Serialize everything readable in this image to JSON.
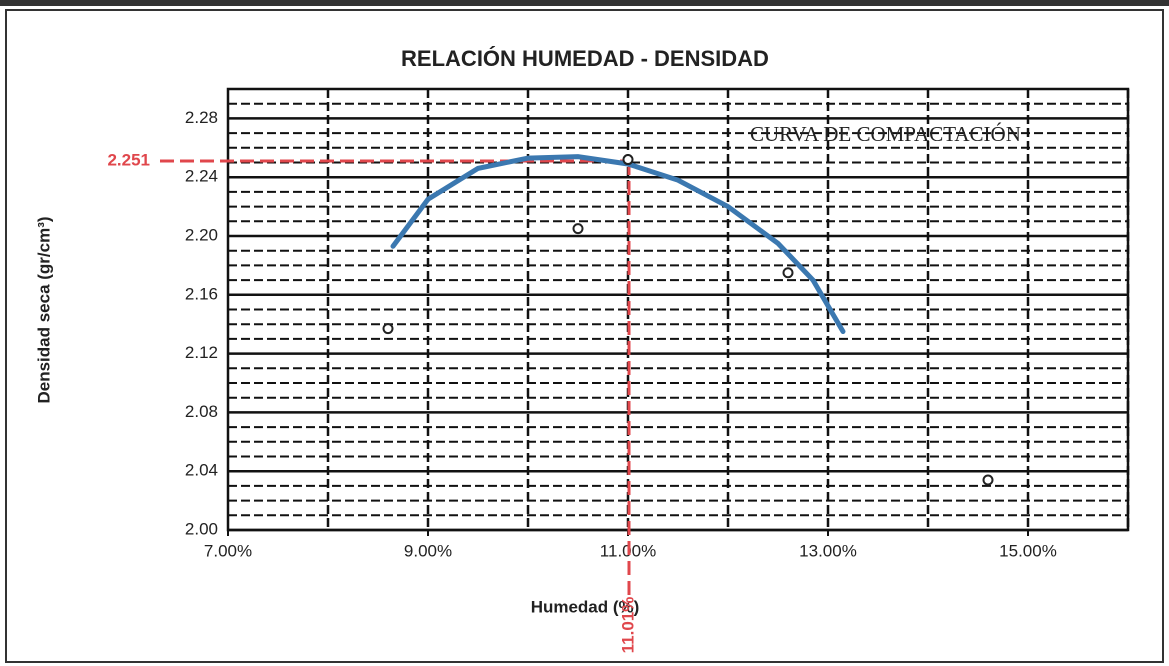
{
  "chart_data": {
    "type": "scatter",
    "title": "RELACIÓN HUMEDAD - DENSIDAD",
    "x_label": "Humedad (%)",
    "y_label": "Densidad seca (gr/cm³)",
    "annotation": "CURVA DE COMPACTACIÓN",
    "x": [
      8.6,
      10.5,
      11.0,
      12.6,
      14.6
    ],
    "values": [
      2.137,
      2.205,
      2.252,
      2.175,
      2.034
    ],
    "marker_color": "#222222",
    "curve": {
      "color": "#3b78b0",
      "x": [
        8.65,
        9.0,
        9.5,
        10.0,
        10.5,
        11.0,
        11.5,
        12.0,
        12.5,
        12.85,
        13.15
      ],
      "y": [
        2.193,
        2.225,
        2.246,
        2.253,
        2.254,
        2.249,
        2.238,
        2.22,
        2.195,
        2.17,
        2.135
      ]
    },
    "optimum": {
      "x": 11.01,
      "y": 2.251,
      "x_label": "11.01%",
      "y_label": "2.251",
      "color": "#e0474c"
    },
    "xlim": [
      7,
      16
    ],
    "xticks": [
      {
        "value": 7,
        "label": "7.00%"
      },
      {
        "value": 9,
        "label": "9.00%"
      },
      {
        "value": 11,
        "label": "11.00%"
      },
      {
        "value": 13,
        "label": "13.00%"
      },
      {
        "value": 15,
        "label": "15.00%"
      }
    ],
    "xgrid": [
      8,
      9,
      10,
      11,
      12,
      13,
      14,
      15,
      16
    ],
    "ylim": [
      2.0,
      2.3
    ],
    "yticks": [
      {
        "value": 2.0,
        "label": "2.00"
      },
      2.04,
      2.08,
      2.12,
      2.16,
      {
        "value": 2.2,
        "label": "2.20"
      },
      2.24,
      2.28
    ],
    "ygrid_minor": [
      2.01,
      2.02,
      2.03,
      2.05,
      2.06,
      2.07,
      2.09,
      2.1,
      2.11,
      2.13,
      2.14,
      2.15,
      2.17,
      2.18,
      2.19,
      2.21,
      2.22,
      2.23,
      2.25,
      2.26,
      2.27,
      2.29,
      2.3
    ],
    "grid": true
  }
}
